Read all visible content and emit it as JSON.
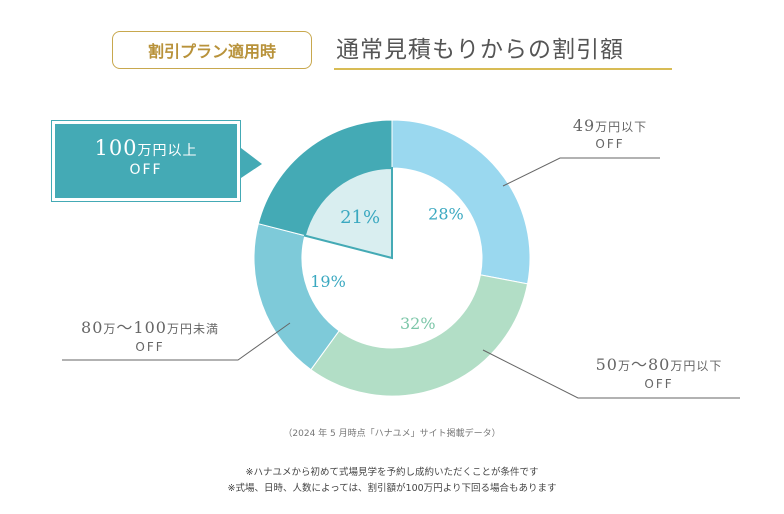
{
  "header": {
    "badge": "割引プラン適用時",
    "title": "通常見積もりからの割引額"
  },
  "chart_data": {
    "type": "pie",
    "style": "donut",
    "categories": [
      "49万円以下 OFF",
      "50万〜80万円以下 OFF",
      "80万〜100万円未満 OFF",
      "100万円以上 OFF"
    ],
    "values": [
      28,
      32,
      19,
      21
    ],
    "value_labels": [
      "28%",
      "32%",
      "19%",
      "21%"
    ],
    "colors": [
      "#9ad8ef",
      "#b2dec6",
      "#7ecad9",
      "#44aab5"
    ]
  },
  "labels": {
    "l1": {
      "amount": "49",
      "unit": "万円以下",
      "off": "OFF"
    },
    "l2": {
      "amount_a": "50",
      "unit_a": "万",
      "sep": "〜",
      "amount_b": "80",
      "unit_b": "万円以下",
      "off": "OFF"
    },
    "l3": {
      "amount_a": "80",
      "unit_a": "万",
      "sep": "〜",
      "amount_b": "100",
      "unit_b": "万円未満",
      "off": "OFF"
    },
    "l4": {
      "amount": "100",
      "unit": "万円以上",
      "off": "OFF"
    }
  },
  "source": "（2024 年 5 月時点「ハナユメ」サイト掲載データ）",
  "notes": [
    "※ハナユメから初めて式場見学を予約し成約いただくことが条件です",
    "※式場、日時、人数によっては、割引額が100万円より下回る場合もあります"
  ]
}
